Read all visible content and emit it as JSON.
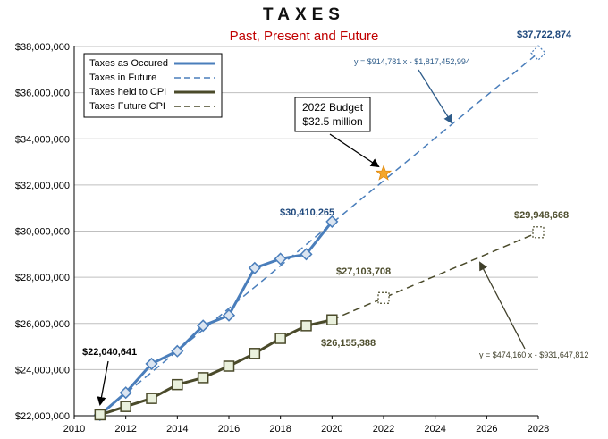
{
  "chart_data": {
    "type": "line",
    "title": "TAXES",
    "subtitle": "Past, Present and Future",
    "xlim": [
      2010,
      2028
    ],
    "ylim": [
      22000000,
      38000000
    ],
    "x_ticks": [
      2010,
      2012,
      2014,
      2016,
      2018,
      2020,
      2022,
      2024,
      2026,
      2028
    ],
    "y_ticks": [
      22000000,
      24000000,
      26000000,
      28000000,
      30000000,
      32000000,
      34000000,
      36000000,
      38000000
    ],
    "y_tick_labels": [
      "$22,000,000",
      "$24,000,000",
      "$26,000,000",
      "$28,000,000",
      "$30,000,000",
      "$32,000,000",
      "$34,000,000",
      "$36,000,000",
      "$38,000,000"
    ],
    "legend_position": "top-left",
    "colors": {
      "blue": "#4a7ebb",
      "olive": "#4a4a2a",
      "oliveLight": "#eaf1dd",
      "blueLight": "#dbe5f1",
      "star": "#f4a62a",
      "text_blue": "#1f497d",
      "text_olive": "#4f4f2f"
    },
    "series": [
      {
        "name": "Taxes as Occured",
        "style": "solid-blue",
        "x": [
          2011,
          2012,
          2013,
          2014,
          2015,
          2016,
          2017,
          2018,
          2019,
          2020
        ],
        "values": [
          22040641,
          23000000,
          24250000,
          24800000,
          25900000,
          26350000,
          28400000,
          28800000,
          29000000,
          30410265
        ]
      },
      {
        "name": "Taxes in Future",
        "style": "dashed-blue",
        "x": [
          2011,
          2028
        ],
        "values": [
          22040641,
          37722874
        ]
      },
      {
        "name": "Taxes held to CPI",
        "style": "solid-olive",
        "x": [
          2011,
          2012,
          2013,
          2014,
          2015,
          2016,
          2017,
          2018,
          2019,
          2020
        ],
        "values": [
          22040641,
          22400000,
          22750000,
          23350000,
          23650000,
          24150000,
          24700000,
          25350000,
          25900000,
          26155388
        ]
      },
      {
        "name": "Taxes Future CPI",
        "style": "dashed-olive",
        "x": [
          2020,
          2028
        ],
        "values": [
          26155388,
          29948668
        ]
      }
    ],
    "future_markers": [
      {
        "series": "Taxes in Future",
        "x": 2028,
        "y": 37722874
      },
      {
        "series": "Taxes Future CPI",
        "x": 2022,
        "y": 27103708
      },
      {
        "series": "Taxes Future CPI",
        "x": 2028,
        "y": 29948668
      }
    ],
    "budget_star": {
      "x": 2022,
      "y": 32500000
    },
    "annotations": {
      "start_value": "$22,040,641",
      "actual_2020": "$30,410,265",
      "cpi_2020": "$26,155,388",
      "future_2028": "$37,722,874",
      "cpi_2022": "$27,103,708",
      "cpi_2028": "$29,948,668",
      "budget_line1": "2022 Budget",
      "budget_line2": "$32.5 million",
      "eq_blue": "y = $914,781 x - $1,817,452,994",
      "eq_olive": "y = $474,160 x - $931,647,812"
    }
  }
}
